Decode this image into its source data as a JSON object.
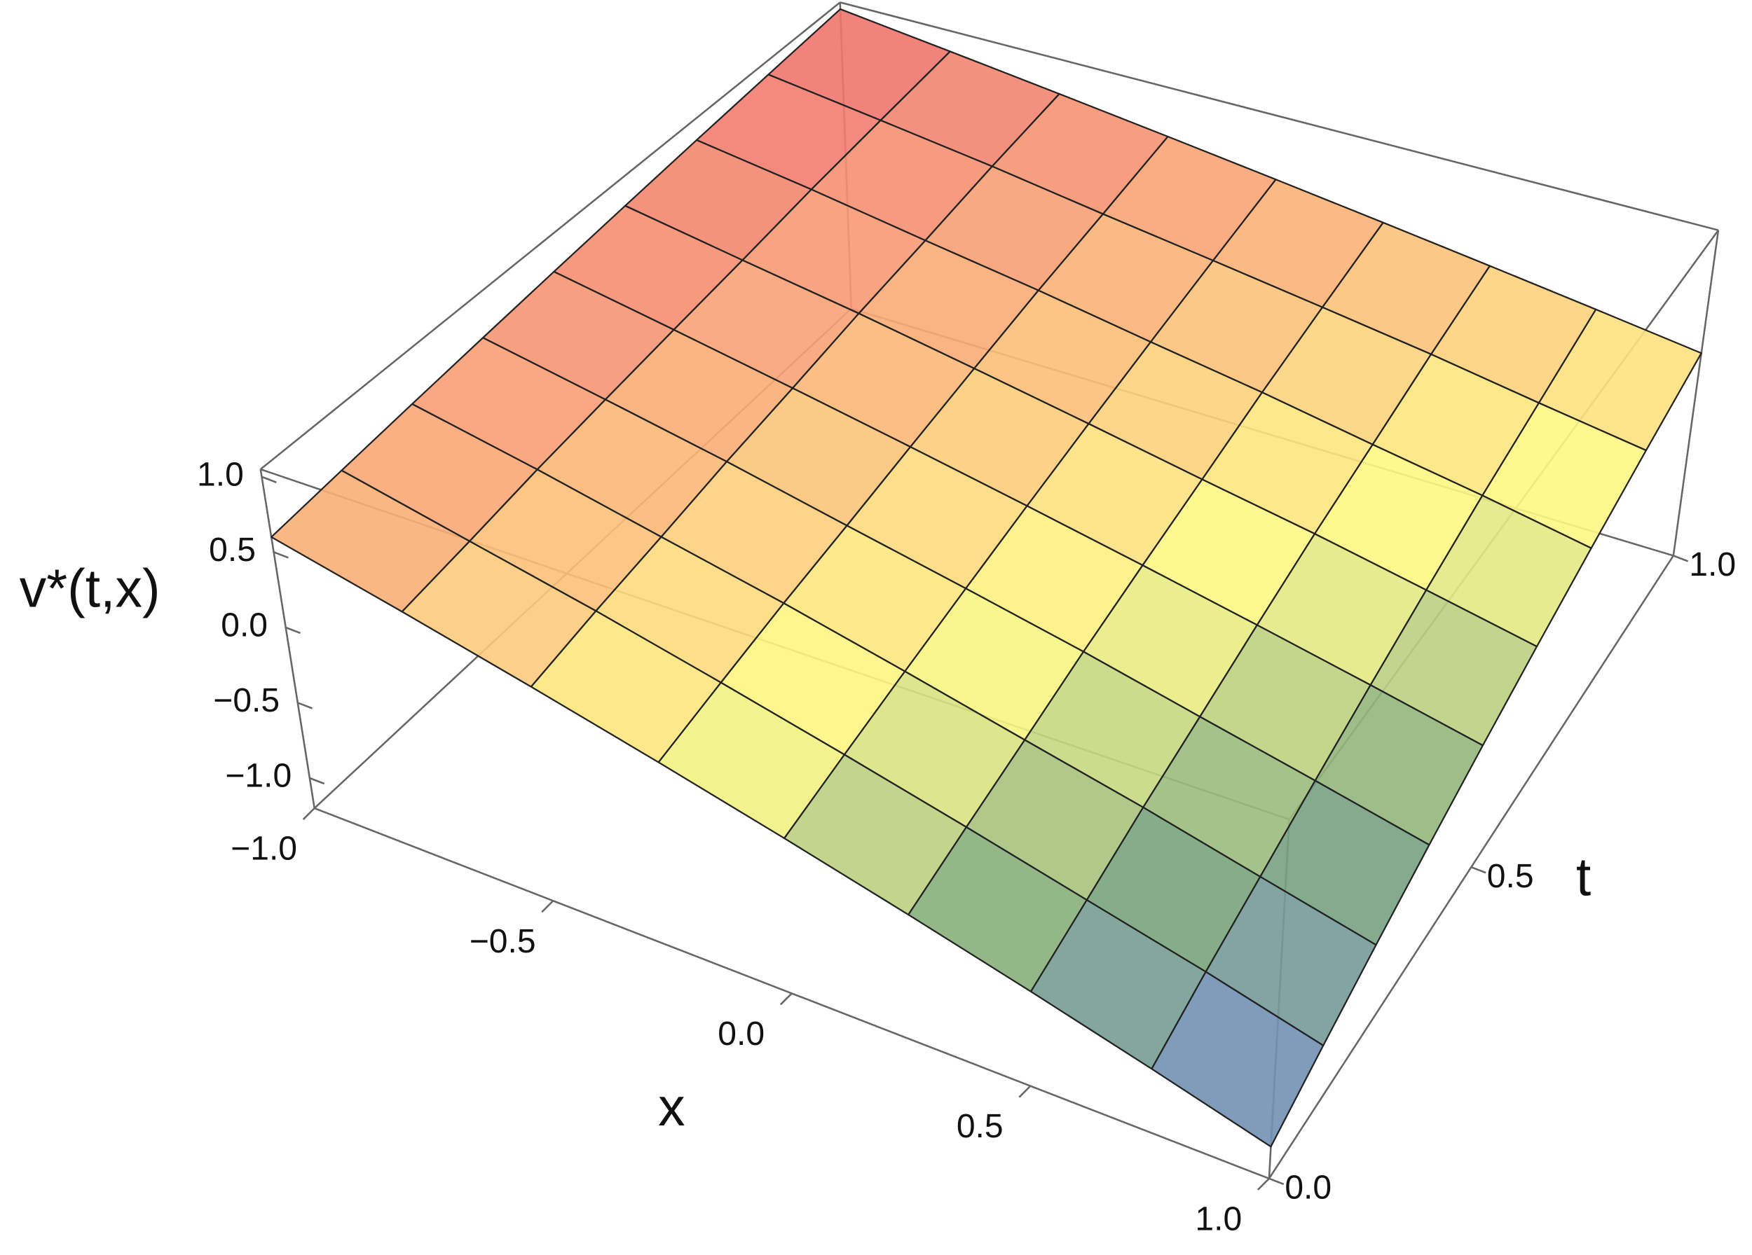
{
  "chart_data": {
    "type": "surface",
    "x": [
      -1,
      -0.75,
      -0.5,
      -0.25,
      0,
      0.25,
      0.5,
      0.75,
      1
    ],
    "y": [
      0,
      0.125,
      0.25,
      0.375,
      0.5,
      0.625,
      0.75,
      0.875,
      1
    ],
    "values": [
      [
        0.6,
        0.4,
        0.2,
        0,
        -0.2,
        -0.4,
        -0.6,
        -0.8,
        -1.0
      ],
      [
        0.65,
        0.46,
        0.28,
        0.09,
        -0.1,
        -0.29,
        -0.48,
        -0.66,
        -0.85
      ],
      [
        0.7,
        0.53,
        0.35,
        0.18,
        0,
        -0.18,
        -0.35,
        -0.53,
        -0.7
      ],
      [
        0.75,
        0.59,
        0.43,
        0.26,
        0.1,
        -0.06,
        -0.23,
        -0.39,
        -0.55
      ],
      [
        0.8,
        0.65,
        0.5,
        0.35,
        0.2,
        0.05,
        -0.1,
        -0.25,
        -0.4
      ],
      [
        0.85,
        0.71,
        0.58,
        0.44,
        0.3,
        0.16,
        0.03,
        -0.11,
        -0.25
      ],
      [
        0.9,
        0.78,
        0.65,
        0.53,
        0.4,
        0.28,
        0.15,
        0.03,
        -0.1
      ],
      [
        0.95,
        0.84,
        0.73,
        0.61,
        0.5,
        0.39,
        0.28,
        0.16,
        0.05
      ],
      [
        1.0,
        0.9,
        0.8,
        0.7,
        0.6,
        0.5,
        0.4,
        0.3,
        0.2
      ]
    ],
    "xlabel": "x",
    "ylabel": "t",
    "zlabel": "v*(t,x)",
    "xlim": [
      -1,
      1
    ],
    "ylim": [
      0,
      1
    ],
    "zlim": [
      -1.2,
      1.05
    ],
    "xticks": [
      {
        "value": -1,
        "label": "−1.0"
      },
      {
        "value": -0.5,
        "label": "−0.5"
      },
      {
        "value": 0,
        "label": "0.0"
      },
      0.5,
      {
        "value": 1,
        "label": "1.0"
      }
    ],
    "yticks": [
      {
        "value": 0,
        "label": "0.0"
      },
      0.5,
      {
        "value": 1,
        "label": "1.0"
      }
    ],
    "zticks": [
      {
        "value": -1,
        "label": "−1.0"
      },
      {
        "value": -0.5,
        "label": "−0.5"
      },
      {
        "value": 0,
        "label": "0.0"
      },
      0.5,
      {
        "value": 1,
        "label": "1.0"
      }
    ],
    "colormap": [
      "#6e86cf",
      "#78a57a",
      "#fffb84",
      "#fbb377",
      "#ef6a6c"
    ]
  }
}
